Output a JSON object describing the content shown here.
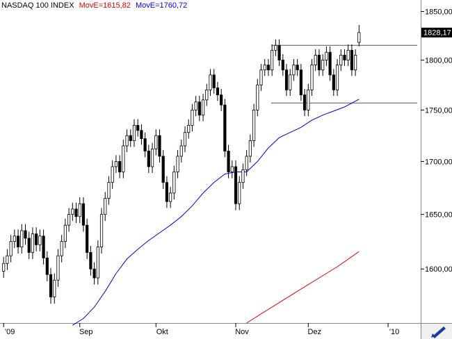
{
  "chart_data": {
    "type": "candlestick",
    "title": "NASDAQ 100 INDEX",
    "log_scale": true,
    "xlim": [
      -1,
      115
    ],
    "xticks": [
      {
        "value": 0,
        "label": "'09"
      },
      {
        "value": 21,
        "label": "Sep"
      },
      {
        "value": 42,
        "label": "Okt"
      },
      {
        "value": 64,
        "label": "Nov"
      },
      {
        "value": 84,
        "label": "Dez"
      },
      {
        "value": 106,
        "label": "'10"
      }
    ],
    "ylim": [
      1552,
      1862
    ],
    "yticks": [
      {
        "value": 1600,
        "label": "1600,00"
      },
      {
        "value": 1650,
        "label": "1650,00"
      },
      {
        "value": 1700,
        "label": "1700,00"
      },
      {
        "value": 1750,
        "label": "1750,00"
      },
      {
        "value": 1800,
        "label": "1800,00"
      },
      {
        "value": 1850,
        "label": "1850,00"
      }
    ],
    "up_color": "#ffffff",
    "down_color": "#000000",
    "open": [
      1598,
      1605,
      1612,
      1625,
      1630,
      1620,
      1635,
      1628,
      1615,
      1632,
      1622,
      1630,
      1610,
      1595,
      1575,
      1590,
      1612,
      1625,
      1640,
      1650,
      1655,
      1648,
      1660,
      1640,
      1615,
      1600,
      1592,
      1620,
      1650,
      1665,
      1680,
      1695,
      1700,
      1690,
      1715,
      1725,
      1720,
      1735,
      1730,
      1722,
      1710,
      1695,
      1712,
      1725,
      1705,
      1680,
      1662,
      1670,
      1690,
      1705,
      1715,
      1728,
      1735,
      1750,
      1758,
      1745,
      1760,
      1770,
      1785,
      1772,
      1765,
      1755,
      1710,
      1690,
      1695,
      1660,
      1680,
      1692,
      1705,
      1720,
      1750,
      1775,
      1790,
      1795,
      1790,
      1810,
      1815,
      1800,
      1790,
      1770,
      1785,
      1795,
      1790,
      1765,
      1750,
      1770,
      1795,
      1805,
      1790,
      1800,
      1808,
      1785,
      1770,
      1795,
      1805,
      1800,
      1810,
      1790,
      1818
    ],
    "high": [
      1611,
      1618,
      1631,
      1636,
      1636,
      1641,
      1641,
      1634,
      1638,
      1638,
      1636,
      1636,
      1616,
      1601,
      1596,
      1618,
      1631,
      1646,
      1656,
      1661,
      1661,
      1666,
      1666,
      1646,
      1621,
      1606,
      1626,
      1656,
      1671,
      1686,
      1701,
      1706,
      1706,
      1721,
      1731,
      1731,
      1741,
      1741,
      1736,
      1728,
      1716,
      1718,
      1731,
      1731,
      1711,
      1686,
      1676,
      1696,
      1711,
      1721,
      1734,
      1741,
      1756,
      1764,
      1764,
      1766,
      1776,
      1791,
      1791,
      1778,
      1771,
      1761,
      1716,
      1701,
      1701,
      1686,
      1698,
      1711,
      1726,
      1756,
      1781,
      1796,
      1801,
      1801,
      1816,
      1821,
      1821,
      1806,
      1796,
      1791,
      1801,
      1801,
      1796,
      1771,
      1776,
      1801,
      1811,
      1811,
      1806,
      1814,
      1814,
      1791,
      1801,
      1811,
      1811,
      1816,
      1816,
      1811,
      1836
    ],
    "low": [
      1592,
      1599,
      1606,
      1619,
      1614,
      1614,
      1622,
      1609,
      1609,
      1616,
      1616,
      1604,
      1589,
      1569,
      1569,
      1584,
      1606,
      1619,
      1634,
      1644,
      1642,
      1642,
      1634,
      1609,
      1594,
      1586,
      1586,
      1614,
      1644,
      1659,
      1674,
      1689,
      1684,
      1684,
      1709,
      1714,
      1714,
      1724,
      1716,
      1704,
      1689,
      1689,
      1706,
      1699,
      1674,
      1656,
      1656,
      1664,
      1684,
      1699,
      1709,
      1722,
      1729,
      1744,
      1739,
      1739,
      1754,
      1764,
      1766,
      1759,
      1749,
      1704,
      1684,
      1684,
      1654,
      1654,
      1674,
      1686,
      1699,
      1714,
      1744,
      1769,
      1784,
      1784,
      1784,
      1804,
      1794,
      1784,
      1764,
      1764,
      1779,
      1784,
      1759,
      1744,
      1744,
      1764,
      1789,
      1784,
      1784,
      1794,
      1779,
      1764,
      1764,
      1789,
      1794,
      1794,
      1784,
      1784,
      1814
    ],
    "close": [
      1605,
      1612,
      1625,
      1630,
      1620,
      1635,
      1628,
      1615,
      1632,
      1622,
      1630,
      1610,
      1595,
      1575,
      1590,
      1612,
      1625,
      1640,
      1650,
      1655,
      1648,
      1660,
      1640,
      1615,
      1600,
      1592,
      1620,
      1650,
      1665,
      1680,
      1695,
      1700,
      1690,
      1715,
      1725,
      1720,
      1735,
      1730,
      1722,
      1710,
      1695,
      1712,
      1725,
      1705,
      1680,
      1662,
      1670,
      1690,
      1705,
      1715,
      1728,
      1735,
      1750,
      1758,
      1745,
      1760,
      1770,
      1785,
      1772,
      1765,
      1755,
      1710,
      1690,
      1695,
      1660,
      1680,
      1692,
      1705,
      1720,
      1750,
      1775,
      1790,
      1795,
      1790,
      1810,
      1815,
      1800,
      1790,
      1770,
      1785,
      1795,
      1790,
      1765,
      1750,
      1770,
      1795,
      1805,
      1790,
      1800,
      1808,
      1785,
      1770,
      1795,
      1805,
      1800,
      1810,
      1790,
      1805,
      1828.17
    ],
    "series": [
      {
        "name": "MovE=1615,82",
        "color": "#e00000",
        "x": [
          67,
          72,
          77,
          82,
          87,
          92,
          98
        ],
        "values": [
          1552,
          1562,
          1572,
          1582,
          1592,
          1602,
          1615.82
        ]
      },
      {
        "name": "MovE=1760,72",
        "color": "#0000e0",
        "x": [
          19,
          22,
          25,
          28,
          31,
          34,
          37,
          40,
          43,
          46,
          49,
          52,
          55,
          58,
          61,
          64,
          67,
          70,
          73,
          76,
          79,
          82,
          85,
          88,
          91,
          94,
          98
        ],
        "values": [
          1550,
          1556,
          1566,
          1580,
          1596,
          1609,
          1618,
          1626,
          1633,
          1640,
          1648,
          1658,
          1670,
          1680,
          1688,
          1690,
          1690,
          1700,
          1713,
          1723,
          1728,
          1733,
          1740,
          1745,
          1749,
          1753,
          1760.72
        ]
      }
    ],
    "levels": [
      1815,
      1757
    ],
    "last_price": {
      "value": 1828.17,
      "label": "1828,17"
    }
  }
}
